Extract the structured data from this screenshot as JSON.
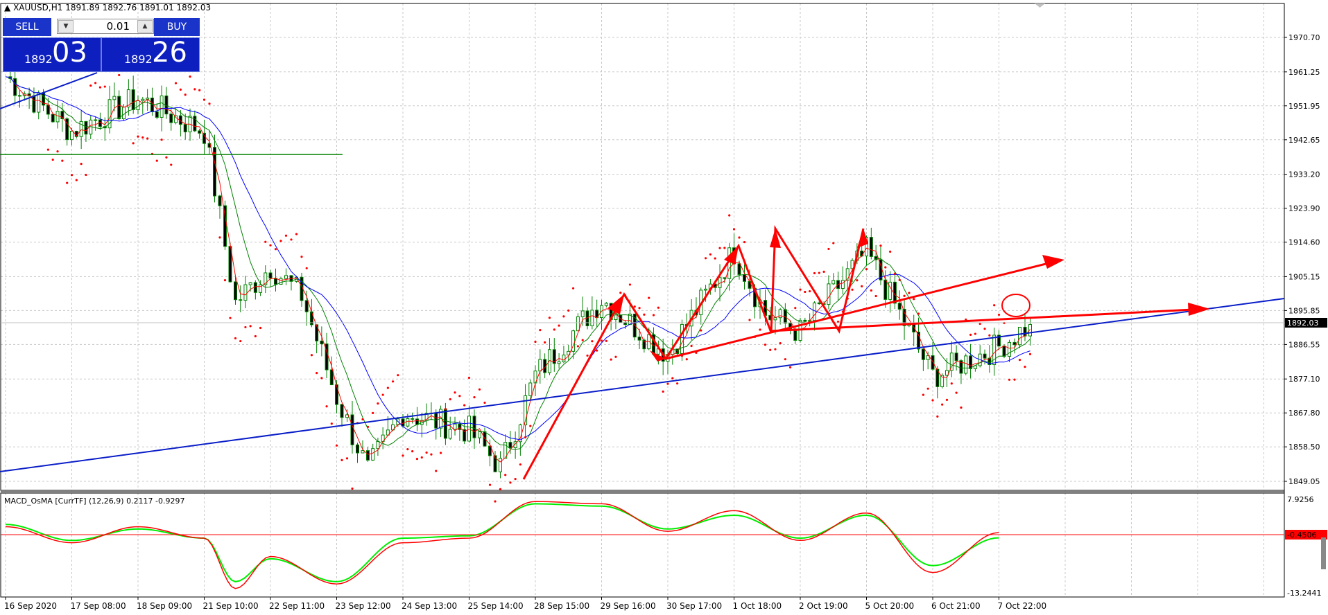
{
  "symbol_header": {
    "marker": "▲",
    "text": "XAUUSD,H1  1891.89 1892.76 1891.01 1892.03"
  },
  "trade_panel": {
    "sell_label": "SELL",
    "buy_label": "BUY",
    "lot_value": "0.01",
    "lot_down_icon": "triangle-down",
    "lot_up_icon": "triangle-up",
    "sell_price_small": "1892",
    "sell_price_big": "03",
    "buy_price_small": "1892",
    "buy_price_big": "26"
  },
  "colors": {
    "background": "#ffffff",
    "grid": "#c8c8c8",
    "panel_blue": "#1a33c9",
    "trendline_blue": "#0a1ec8",
    "annotation_red": "#ff0000",
    "ma_fast": "#ff0000",
    "ma_mid": "#008000",
    "ma_slow": "#0000ff",
    "macd_main": "#ff0000",
    "macd_signal": "#00ee00"
  },
  "price_axis": {
    "labels": [
      "1970.70",
      "1961.25",
      "1951.95",
      "1942.65",
      "1933.20",
      "1923.90",
      "1914.60",
      "1905.15",
      "1895.85",
      "1886.55",
      "1877.10",
      "1867.80",
      "1858.50",
      "1849.05"
    ],
    "current_price": "1892.03"
  },
  "indicator": {
    "title": "MACD_OsMA [CurrTF] (12,26,9) 0.2117 -0.9297",
    "axis_top": "7.9256",
    "axis_bottom": "-13.2441",
    "level_value": "-0.4506"
  },
  "time_axis": {
    "labels": [
      "16 Sep 2020",
      "17 Sep 08:00",
      "18 Sep 09:00",
      "21 Sep 10:00",
      "22 Sep 11:00",
      "23 Sep 12:00",
      "24 Sep 13:00",
      "25 Sep 14:00",
      "28 Sep 15:00",
      "29 Sep 16:00",
      "30 Sep 17:00",
      "1 Oct 18:00",
      "2 Oct 19:00",
      "5 Oct 20:00",
      "6 Oct 21:00",
      "7 Oct 22:00"
    ]
  },
  "chart_data": {
    "type": "candlestick",
    "symbol": "XAUUSD",
    "timeframe": "H1",
    "ylim": [
      1847,
      1976
    ],
    "grid": true,
    "x": [
      "16 Sep 2020",
      "17 Sep 08:00",
      "18 Sep 09:00",
      "21 Sep 10:00",
      "22 Sep 11:00",
      "23 Sep 12:00",
      "24 Sep 13:00",
      "25 Sep 14:00",
      "28 Sep 15:00",
      "29 Sep 16:00",
      "30 Sep 17:00",
      "1 Oct 18:00",
      "2 Oct 19:00",
      "5 Oct 20:00",
      "6 Oct 21:00",
      "7 Oct 22:00"
    ],
    "close_path": [
      {
        "t": "16 Sep 2020",
        "close": 1960
      },
      {
        "t": "17 Sep 08:00",
        "close": 1945
      },
      {
        "t": "18 Sep 09:00",
        "close": 1954
      },
      {
        "t": "21 Sep 10:00",
        "close": 1945
      },
      {
        "t": "21 Sep 10:00",
        "close": 1898
      },
      {
        "t": "22 Sep 11:00",
        "close": 1908
      },
      {
        "t": "22 Sep 11:00",
        "close": 1900
      },
      {
        "t": "23 Sep 12:00",
        "close": 1872
      },
      {
        "t": "23 Sep 12:00",
        "close": 1852
      },
      {
        "t": "24 Sep 13:00",
        "close": 1868
      },
      {
        "t": "25 Sep 14:00",
        "close": 1863
      },
      {
        "t": "25 Sep 14:00",
        "close": 1853
      },
      {
        "t": "28 Sep 15:00",
        "close": 1878
      },
      {
        "t": "29 Sep 16:00",
        "close": 1899
      },
      {
        "t": "30 Sep 17:00",
        "close": 1884
      },
      {
        "t": "1 Oct 18:00",
        "close": 1912
      },
      {
        "t": "1 Oct 18:00",
        "close": 1895
      },
      {
        "t": "2 Oct 19:00",
        "close": 1890
      },
      {
        "t": "5 Oct 20:00",
        "close": 1912
      },
      {
        "t": "6 Oct 21:00",
        "close": 1878
      },
      {
        "t": "7 Oct 22:00",
        "close": 1886
      },
      {
        "t": "7 Oct 22:00",
        "close": 1892.03
      }
    ],
    "overlays": [
      "moving-average-red",
      "moving-average-green",
      "moving-average-blue",
      "parabolic-sar-dots"
    ],
    "macd": {
      "ylim": [
        -13.2441,
        7.9256
      ],
      "zero_level": -0.4506,
      "main": [
        {
          "t": "16 Sep 2020",
          "value": 1.5
        },
        {
          "t": "17 Sep 08:00",
          "value": -2.0
        },
        {
          "t": "18 Sep 09:00",
          "value": 1.5
        },
        {
          "t": "21 Sep 10:00",
          "value": -1.0
        },
        {
          "t": "21 Sep 10:00",
          "value": -12.0
        },
        {
          "t": "22 Sep 11:00",
          "value": -5.0
        },
        {
          "t": "23 Sep 12:00",
          "value": -11.0
        },
        {
          "t": "24 Sep 13:00",
          "value": -2.0
        },
        {
          "t": "25 Sep 14:00",
          "value": -1.0
        },
        {
          "t": "28 Sep 15:00",
          "value": 7.0
        },
        {
          "t": "29 Sep 16:00",
          "value": 6.5
        },
        {
          "t": "30 Sep 17:00",
          "value": 0.5
        },
        {
          "t": "1 Oct 18:00",
          "value": 5.0
        },
        {
          "t": "2 Oct 19:00",
          "value": -1.5
        },
        {
          "t": "5 Oct 20:00",
          "value": 4.5
        },
        {
          "t": "6 Oct 21:00",
          "value": -8.5
        },
        {
          "t": "7 Oct 22:00",
          "value": 0.2117
        }
      ],
      "signal": [
        {
          "t": "16 Sep 2020",
          "value": 2.0
        },
        {
          "t": "17 Sep 08:00",
          "value": -1.5
        },
        {
          "t": "18 Sep 09:00",
          "value": 1.0
        },
        {
          "t": "21 Sep 10:00",
          "value": -1.0
        },
        {
          "t": "21 Sep 10:00",
          "value": -10.5
        },
        {
          "t": "22 Sep 11:00",
          "value": -5.5
        },
        {
          "t": "23 Sep 12:00",
          "value": -10.5
        },
        {
          "t": "24 Sep 13:00",
          "value": -1.0
        },
        {
          "t": "25 Sep 14:00",
          "value": -0.5
        },
        {
          "t": "28 Sep 15:00",
          "value": 6.5
        },
        {
          "t": "29 Sep 16:00",
          "value": 6.0
        },
        {
          "t": "30 Sep 17:00",
          "value": 1.0
        },
        {
          "t": "1 Oct 18:00",
          "value": 4.0
        },
        {
          "t": "2 Oct 19:00",
          "value": -1.0
        },
        {
          "t": "5 Oct 20:00",
          "value": 4.0
        },
        {
          "t": "6 Oct 21:00",
          "value": -7.0
        },
        {
          "t": "7 Oct 22:00",
          "value": -0.9297
        }
      ]
    }
  }
}
